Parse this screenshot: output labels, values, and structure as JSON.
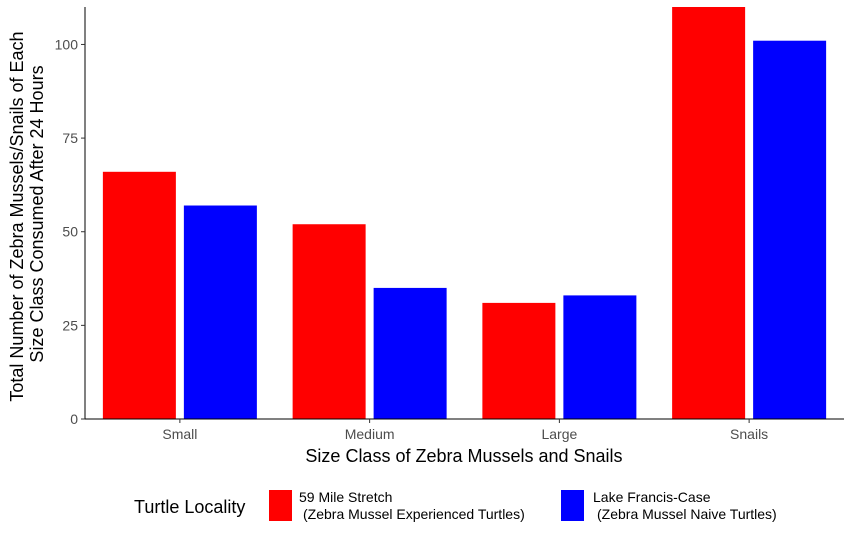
{
  "chart_data": {
    "type": "bar",
    "categories": [
      "Small",
      "Medium",
      "Large",
      "Snails"
    ],
    "series": [
      {
        "name_lines": [
          "59 Mile Stretch",
          "(Zebra Mussel Experienced Turtles)"
        ],
        "color": "#FF0000",
        "values": [
          66,
          52,
          31,
          110
        ]
      },
      {
        "name_lines": [
          "Lake Francis-Case",
          "(Zebra Mussel Naive Turtles)"
        ],
        "color": "#0000FF",
        "values": [
          57,
          35,
          33,
          101
        ]
      }
    ],
    "xlabel": "Size Class of Zebra Mussels and Snails",
    "ylabel_lines": [
      "Total Number of Zebra Mussels/Snails of Each",
      "Size Class Consumed After 24 Hours"
    ],
    "ylim": [
      0,
      110
    ],
    "yticks": [
      0,
      25,
      50,
      75,
      100
    ],
    "legend": {
      "title": "Turtle Locality",
      "position": "bottom"
    },
    "grid": false
  }
}
